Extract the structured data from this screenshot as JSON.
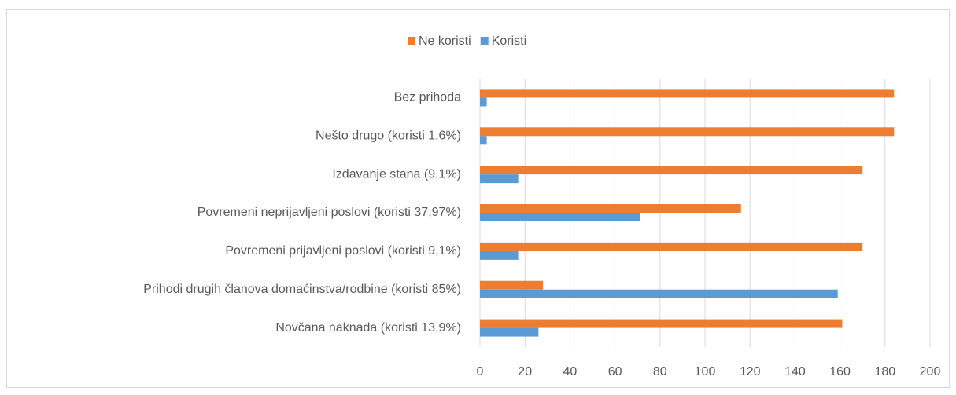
{
  "chart_data": {
    "type": "bar",
    "orientation": "horizontal",
    "categories": [
      "Bez prihoda",
      "Nešto drugo (koristi 1,6%)",
      "Izdavanje stana (9,1%)",
      "Povremeni neprijavljeni poslovi (koristi 37,97%)",
      "Povremeni prijavljeni poslovi (koristi 9,1%)",
      "Prihodi drugih članova domaćinstva/rodbine (koristi 85%)",
      "Novčana naknada (koristi 13,9%)"
    ],
    "series": [
      {
        "name": "Ne koristi",
        "color": "#ed7d31",
        "values": [
          184,
          184,
          170,
          116,
          170,
          28,
          161
        ]
      },
      {
        "name": "Koristi",
        "color": "#5b9bd5",
        "values": [
          3,
          3,
          17,
          71,
          17,
          159,
          26
        ]
      }
    ],
    "xlim": [
      0,
      200
    ],
    "xticks": [
      0,
      20,
      40,
      60,
      80,
      100,
      120,
      140,
      160,
      180,
      200
    ],
    "grid": true,
    "legend": "top"
  }
}
